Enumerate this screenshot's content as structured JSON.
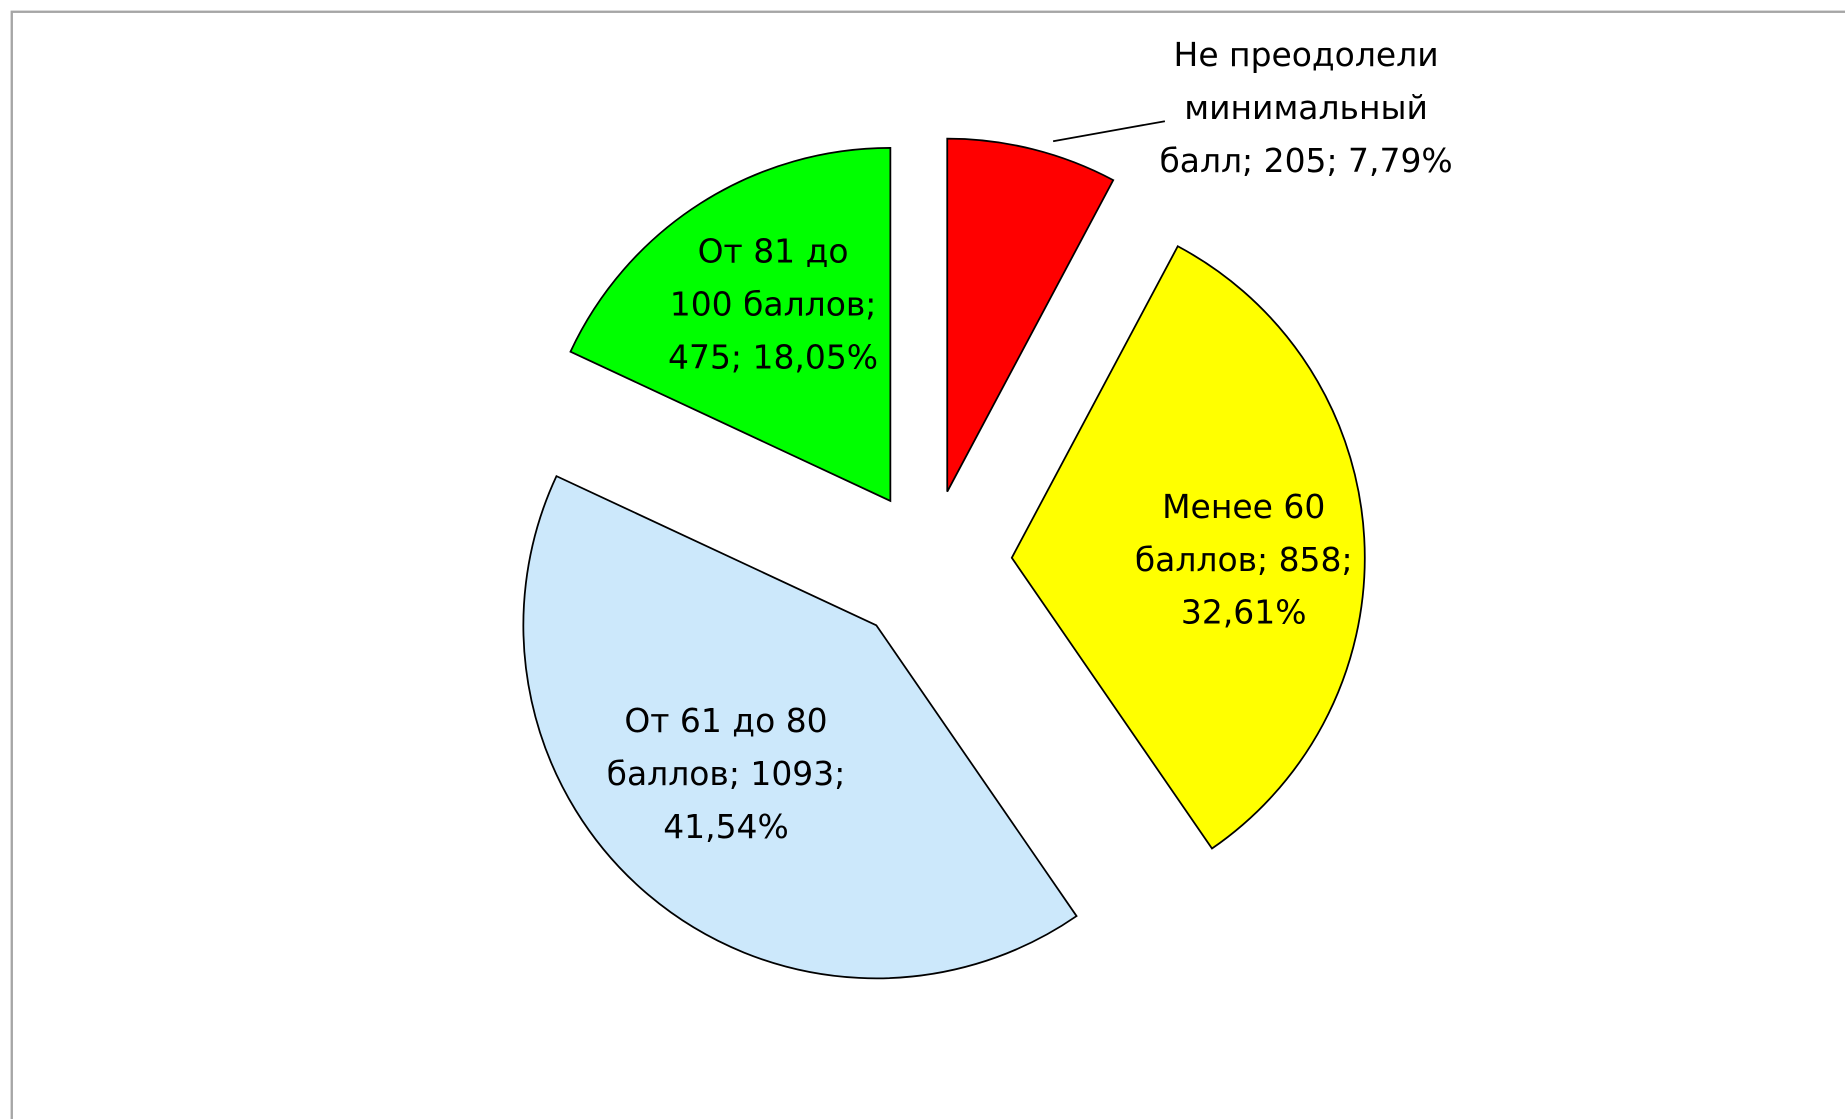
{
  "chart_data": {
    "type": "pie",
    "values": [
      205,
      858,
      1093,
      475
    ],
    "value_labels": [
      [
        "Не преодолели",
        "минимальный",
        "балл; 205; 7,79%"
      ],
      [
        "Менее 60",
        "баллов; 858;",
        "32,61%"
      ],
      [
        "От 61 до 80",
        "баллов; 1093;",
        "41,54%"
      ],
      [
        "От 81 до",
        "100 баллов;",
        "475; 18,05%"
      ]
    ],
    "colors": [
      "#ff0000",
      "#ffff00",
      "#cce8fb",
      "#00ff00"
    ]
  }
}
